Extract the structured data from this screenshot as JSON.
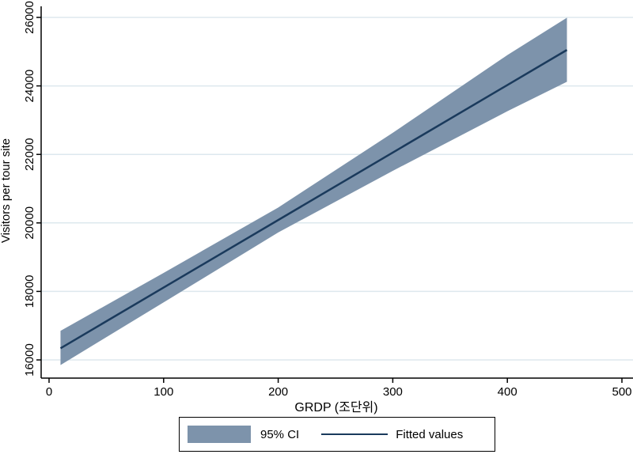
{
  "chart_data": {
    "type": "line",
    "xlabel": "GRDP (조단위)",
    "ylabel": "Visitors per tour site",
    "xlim": [
      0,
      500
    ],
    "ylim": [
      16000,
      26000
    ],
    "x_ticks": [
      0,
      100,
      200,
      300,
      400,
      500
    ],
    "y_ticks": [
      16000,
      18000,
      20000,
      22000,
      24000,
      26000
    ],
    "grid": "horizontal",
    "legend_position": "bottom",
    "series": [
      {
        "name": "95% CI",
        "kind": "band",
        "x": [
          10,
          100,
          200,
          300,
          400,
          452
        ],
        "lower": [
          15850,
          17680,
          19720,
          21520,
          23260,
          24120
        ],
        "upper": [
          16850,
          18540,
          20450,
          22630,
          24900,
          25990
        ]
      },
      {
        "name": "Fitted values",
        "kind": "line",
        "x": [
          10,
          452
        ],
        "y": [
          16340,
          25050
        ]
      }
    ],
    "colors": {
      "band": "#7d93ab",
      "line": "#1a3a5c",
      "grid": "#dde8ee"
    }
  }
}
